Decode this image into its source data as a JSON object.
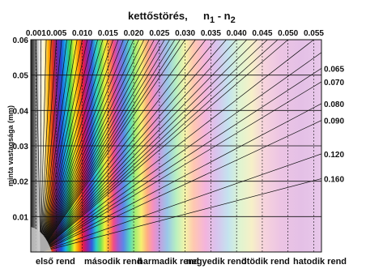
{
  "chart_data": {
    "type": "line",
    "title": "kettőstörés,",
    "title_formula": "n",
    "title_sub1": "1",
    "title_minus": " - n",
    "title_sub2": "2",
    "xlabel": "kettőstörés, n1 - n2",
    "ylabel": "minta vastagsága (mm)",
    "xlim": [
      0,
      0.0565
    ],
    "ylim": [
      0,
      0.06
    ],
    "x_ticks": [
      "0.001",
      "0.005",
      "0.010",
      "0.015",
      "0.020",
      "0.025",
      "0.030",
      "0.035",
      "0.040",
      "0.045",
      "0.050",
      "0.055"
    ],
    "x_tick_values": [
      0.001,
      0.005,
      0.01,
      0.015,
      0.02,
      0.025,
      0.03,
      0.035,
      0.04,
      0.045,
      0.05,
      0.055
    ],
    "y_ticks": [
      "0.01",
      "0.02",
      "0.03",
      "0.04",
      "0.05",
      "0.06"
    ],
    "y_tick_values": [
      0.01,
      0.02,
      0.03,
      0.04,
      0.05,
      0.06
    ],
    "right_labels": [
      "0.065",
      "0.070",
      "0.080",
      "0.090",
      "0.120",
      "0.160"
    ],
    "right_label_values": [
      0.065,
      0.07,
      0.08,
      0.09,
      0.12,
      0.16
    ],
    "birefringence_lines": [
      0.001,
      0.002,
      0.003,
      0.004,
      0.005,
      0.006,
      0.007,
      0.008,
      0.009,
      0.01,
      0.011,
      0.012,
      0.013,
      0.014,
      0.015,
      0.016,
      0.017,
      0.018,
      0.019,
      0.02,
      0.021,
      0.022,
      0.023,
      0.024,
      0.025,
      0.026,
      0.027,
      0.028,
      0.029,
      0.03,
      0.032,
      0.034,
      0.036,
      0.038,
      0.04,
      0.042,
      0.044,
      0.046,
      0.048,
      0.05,
      0.055,
      0.06,
      0.065,
      0.07,
      0.08,
      0.09,
      0.12,
      0.16
    ],
    "order_labels": [
      "első rend",
      "második rend",
      "harmadik rend",
      "negyedik rend",
      "ötödik rend",
      "hatodik rend"
    ],
    "grid": true,
    "legend": "none"
  }
}
